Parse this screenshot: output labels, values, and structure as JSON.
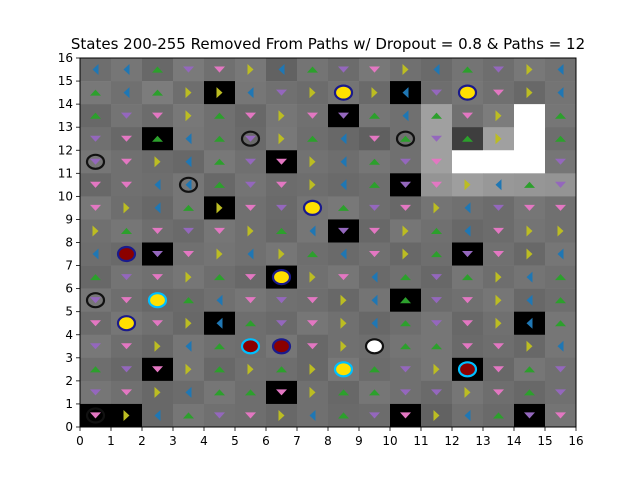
{
  "chart_data": {
    "type": "heatmap",
    "title": "States 200-255 Removed From Paths w/ Dropout = 0.8 & Paths = 12",
    "xlabel": "",
    "ylabel": "",
    "xlim": [
      0,
      16
    ],
    "ylim": [
      0,
      16
    ],
    "xticks": [
      0,
      1,
      2,
      3,
      4,
      5,
      6,
      7,
      8,
      9,
      10,
      11,
      12,
      13,
      14,
      15,
      16
    ],
    "yticks": [
      0,
      1,
      2,
      3,
      4,
      5,
      6,
      7,
      8,
      9,
      10,
      11,
      12,
      13,
      14,
      15,
      16
    ],
    "grid": false,
    "cell_grays": [
      [
        110,
        118,
        104,
        122,
        112,
        120,
        98,
        116,
        108,
        120,
        112,
        106,
        116,
        110,
        120,
        114
      ],
      [
        120,
        112,
        124,
        110,
        0,
        118,
        112,
        108,
        116,
        106,
        0,
        110,
        118,
        112,
        104,
        116
      ],
      [
        104,
        116,
        108,
        120,
        112,
        104,
        118,
        112,
        0,
        118,
        112,
        160,
        112,
        124,
        255,
        118
      ],
      [
        112,
        104,
        0,
        118,
        112,
        106,
        120,
        110,
        104,
        96,
        112,
        160,
        62,
        160,
        255,
        110
      ],
      [
        118,
        112,
        108,
        104,
        120,
        112,
        0,
        114,
        110,
        118,
        112,
        160,
        255,
        255,
        255,
        118
      ],
      [
        104,
        112,
        110,
        118,
        104,
        116,
        108,
        110,
        106,
        110,
        0,
        148,
        158,
        152,
        150,
        148
      ],
      [
        120,
        110,
        104,
        118,
        0,
        112,
        106,
        116,
        120,
        110,
        104,
        116,
        112,
        108,
        118,
        112
      ],
      [
        112,
        118,
        110,
        106,
        118,
        112,
        104,
        118,
        0,
        104,
        118,
        112,
        104,
        108,
        116,
        112
      ],
      [
        110,
        106,
        0,
        112,
        116,
        112,
        118,
        110,
        106,
        112,
        104,
        110,
        0,
        112,
        104,
        118
      ],
      [
        104,
        116,
        112,
        118,
        110,
        104,
        0,
        112,
        118,
        106,
        112,
        104,
        118,
        110,
        116,
        112
      ],
      [
        118,
        110,
        104,
        106,
        112,
        118,
        112,
        110,
        104,
        116,
        0,
        108,
        112,
        118,
        104,
        110
      ],
      [
        108,
        118,
        112,
        104,
        0,
        110,
        106,
        118,
        112,
        104,
        110,
        118,
        104,
        112,
        0,
        118
      ],
      [
        120,
        110,
        104,
        118,
        112,
        110,
        118,
        104,
        112,
        110,
        116,
        118,
        106,
        110,
        104,
        118
      ],
      [
        110,
        104,
        0,
        118,
        104,
        112,
        110,
        104,
        120,
        108,
        112,
        118,
        0,
        104,
        118,
        112
      ],
      [
        118,
        112,
        104,
        108,
        118,
        110,
        0,
        112,
        104,
        118,
        112,
        106,
        118,
        110,
        104,
        112
      ],
      [
        0,
        0,
        104,
        118,
        112,
        110,
        104,
        112,
        106,
        108,
        0,
        98,
        112,
        106,
        0,
        116
      ]
    ],
    "arrow_colors": {
      "pink": "#e377c2",
      "olive": "#bcbd22",
      "blue": "#1f77b4",
      "green": "#2ca02c",
      "purple": "#9467bd"
    },
    "arrow_dir_of_color": {
      "pink": "down",
      "olive": "right",
      "blue": "left",
      "green": "up",
      "purple": "down"
    },
    "arrow_grid": [
      [
        "blue",
        "blue",
        "green",
        "purple",
        "pink",
        "olive",
        "blue",
        "green",
        "purple",
        "pink",
        "olive",
        "blue",
        "green",
        "purple",
        "olive",
        "blue"
      ],
      [
        "green",
        "blue",
        "green",
        "olive",
        "olive",
        "blue",
        "purple",
        "olive",
        "pink",
        "olive",
        "blue",
        "purple",
        "green",
        "pink",
        "olive",
        "blue"
      ],
      [
        "green",
        "purple",
        "pink",
        "olive",
        "green",
        "pink",
        "olive",
        "pink",
        "purple",
        "green",
        "blue",
        "green",
        "pink",
        "olive",
        "blue",
        "green"
      ],
      [
        "purple",
        "pink",
        "green",
        "blue",
        "green",
        "purple",
        "olive",
        "green",
        "blue",
        "pink",
        "green",
        "purple",
        "green",
        "olive",
        "blue",
        "green"
      ],
      [
        "purple",
        "pink",
        "olive",
        "blue",
        "green",
        "purple",
        "pink",
        "olive",
        "blue",
        "green",
        "purple",
        "pink",
        "olive",
        "blue",
        "green",
        "purple"
      ],
      [
        "pink",
        "pink",
        "blue",
        "blue",
        "green",
        "purple",
        "pink",
        "olive",
        "blue",
        "green",
        "purple",
        "pink",
        "olive",
        "blue",
        "green",
        "purple"
      ],
      [
        "pink",
        "olive",
        "blue",
        "green",
        "olive",
        "pink",
        "purple",
        "blue",
        "green",
        "purple",
        "pink",
        "olive",
        "blue",
        "purple",
        "pink",
        "pink"
      ],
      [
        "olive",
        "green",
        "pink",
        "purple",
        "pink",
        "olive",
        "green",
        "blue",
        "purple",
        "pink",
        "olive",
        "green",
        "blue",
        "pink",
        "olive",
        "olive"
      ],
      [
        "blue",
        "green",
        "purple",
        "pink",
        "olive",
        "blue",
        "olive",
        "green",
        "blue",
        "pink",
        "olive",
        "green",
        "purple",
        "pink",
        "olive",
        "blue"
      ],
      [
        "green",
        "purple",
        "pink",
        "olive",
        "green",
        "pink",
        "olive",
        "olive",
        "pink",
        "blue",
        "green",
        "purple",
        "green",
        "olive",
        "blue",
        "green"
      ],
      [
        "purple",
        "pink",
        "olive",
        "green",
        "blue",
        "pink",
        "purple",
        "pink",
        "olive",
        "blue",
        "green",
        "purple",
        "pink",
        "olive",
        "blue",
        "green"
      ],
      [
        "pink",
        "purple",
        "pink",
        "olive",
        "blue",
        "green",
        "purple",
        "pink",
        "olive",
        "blue",
        "green",
        "purple",
        "pink",
        "olive",
        "blue",
        "green"
      ],
      [
        "purple",
        "pink",
        "olive",
        "blue",
        "green",
        "blue",
        "purple",
        "pink",
        "olive",
        "blue",
        "green",
        "green",
        "pink",
        "pink",
        "olive",
        "blue"
      ],
      [
        "green",
        "purple",
        "pink",
        "olive",
        "green",
        "olive",
        "green",
        "olive",
        "olive",
        "green",
        "purple",
        "olive",
        "pink",
        "pink",
        "green",
        "purple"
      ],
      [
        "purple",
        "pink",
        "olive",
        "blue",
        "green",
        "green",
        "pink",
        "olive",
        "green",
        "green",
        "purple",
        "purple",
        "olive",
        "pink",
        "green",
        "purple"
      ],
      [
        "pink",
        "olive",
        "blue",
        "green",
        "purple",
        "pink",
        "olive",
        "blue",
        "green",
        "purple",
        "pink",
        "olive",
        "blue",
        "green",
        "purple",
        "pink"
      ]
    ],
    "markers": [
      {
        "name": "yellow-marker",
        "x": 8.5,
        "y": 14.5,
        "fill": "#ffe000",
        "edge": "#1a1a8c"
      },
      {
        "name": "yellow-marker",
        "x": 12.5,
        "y": 14.5,
        "fill": "#ffe000",
        "edge": "#1a1a8c"
      },
      {
        "name": "empty-marker",
        "x": 5.5,
        "y": 12.5,
        "fill": "none",
        "edge": "#111111"
      },
      {
        "name": "empty-marker",
        "x": 10.5,
        "y": 12.5,
        "fill": "none",
        "edge": "#111111"
      },
      {
        "name": "empty-marker",
        "x": 0.5,
        "y": 11.5,
        "fill": "none",
        "edge": "#111111"
      },
      {
        "name": "empty-marker",
        "x": 3.5,
        "y": 10.5,
        "fill": "none",
        "edge": "#111111"
      },
      {
        "name": "yellow-marker",
        "x": 7.5,
        "y": 9.5,
        "fill": "#ffe000",
        "edge": "#1a1a8c"
      },
      {
        "name": "red-marker",
        "x": 1.5,
        "y": 7.5,
        "fill": "#8b0000",
        "edge": "#1a1a8c"
      },
      {
        "name": "yellow-marker",
        "x": 6.5,
        "y": 6.5,
        "fill": "#ffe000",
        "edge": "#1a1a8c"
      },
      {
        "name": "empty-marker",
        "x": 0.5,
        "y": 5.5,
        "fill": "none",
        "edge": "#111111"
      },
      {
        "name": "yellow-marker",
        "x": 2.5,
        "y": 5.5,
        "fill": "#ffe000",
        "edge": "#00bfff"
      },
      {
        "name": "yellow-marker",
        "x": 1.5,
        "y": 4.5,
        "fill": "#ffe000",
        "edge": "#1a1a8c"
      },
      {
        "name": "red-marker",
        "x": 5.5,
        "y": 3.5,
        "fill": "#8b0000",
        "edge": "#00bfff"
      },
      {
        "name": "red-marker",
        "x": 6.5,
        "y": 3.5,
        "fill": "#8b0000",
        "edge": "#1a1a8c"
      },
      {
        "name": "white-marker",
        "x": 9.5,
        "y": 3.5,
        "fill": "#ffffff",
        "edge": "#111111"
      },
      {
        "name": "yellow-marker",
        "x": 8.5,
        "y": 2.5,
        "fill": "#ffe000",
        "edge": "#00bfff"
      },
      {
        "name": "red-marker",
        "x": 12.5,
        "y": 2.5,
        "fill": "#8b0000",
        "edge": "#00bfff"
      },
      {
        "name": "empty-marker",
        "x": 0.5,
        "y": 0.5,
        "fill": "none",
        "edge": "#111111"
      }
    ]
  }
}
